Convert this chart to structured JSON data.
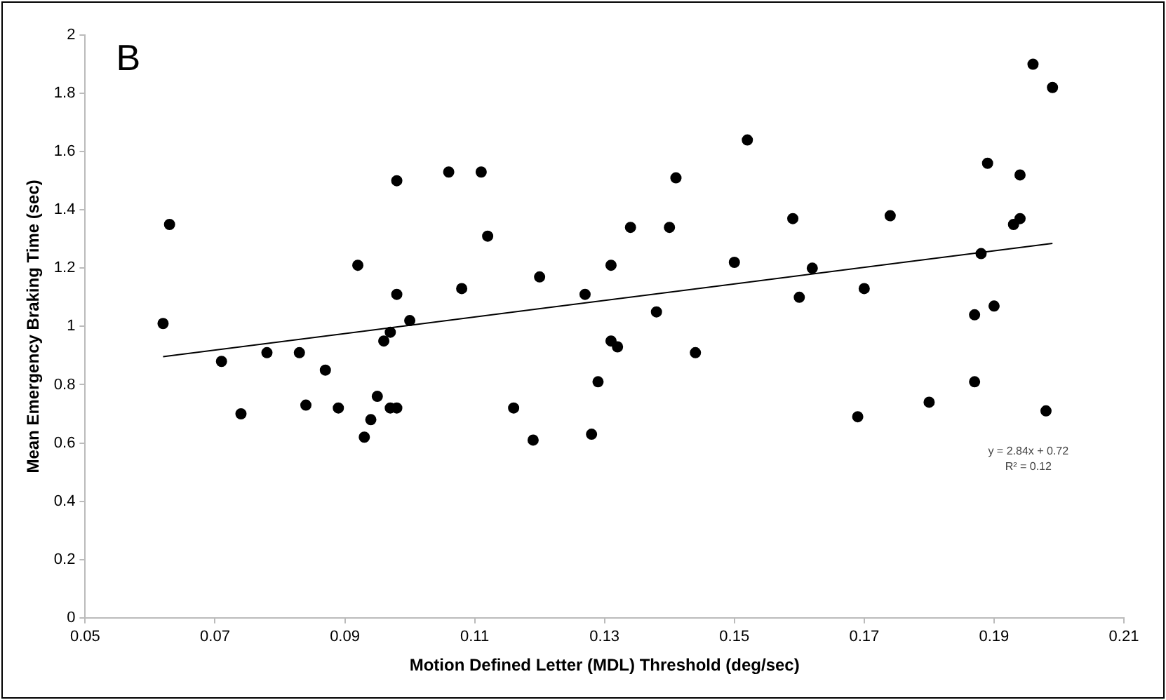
{
  "chart_data": {
    "type": "scatter",
    "xlabel": "Motion Defined Letter (MDL) Threshold (deg/sec)",
    "ylabel": "Mean Emergency Braking Time (sec)",
    "annotations": [
      "B",
      "y = 2.84x + 0.72",
      "R² = 0.12"
    ],
    "series": [
      {
        "color": "#000000",
        "marker": "circle",
        "x": [
          0.062,
          0.063,
          0.071,
          0.074,
          0.078,
          0.083,
          0.084,
          0.087,
          0.089,
          0.092,
          0.093,
          0.094,
          0.095,
          0.096,
          0.097,
          0.097,
          0.098,
          0.098,
          0.098,
          0.1,
          0.106,
          0.108,
          0.111,
          0.112,
          0.116,
          0.119,
          0.12,
          0.127,
          0.128,
          0.129,
          0.131,
          0.131,
          0.132,
          0.134,
          0.138,
          0.14,
          0.141,
          0.144,
          0.15,
          0.152,
          0.159,
          0.16,
          0.162,
          0.169,
          0.17,
          0.174,
          0.18,
          0.187,
          0.187,
          0.188,
          0.189,
          0.19,
          0.193,
          0.194,
          0.194,
          0.196,
          0.198,
          0.199
        ],
        "values": [
          1.01,
          1.35,
          0.88,
          0.7,
          0.91,
          0.91,
          0.73,
          0.85,
          0.72,
          1.21,
          0.62,
          0.68,
          0.76,
          0.95,
          0.98,
          0.72,
          0.72,
          1.5,
          1.11,
          1.02,
          1.53,
          1.13,
          1.53,
          1.31,
          0.72,
          0.61,
          1.17,
          1.11,
          0.63,
          0.81,
          1.21,
          0.95,
          0.93,
          1.34,
          1.05,
          1.34,
          1.51,
          0.91,
          1.22,
          1.64,
          1.37,
          1.1,
          1.2,
          0.69,
          1.13,
          1.38,
          0.74,
          0.81,
          1.04,
          1.25,
          1.56,
          1.07,
          1.35,
          1.37,
          1.52,
          1.9,
          0.71,
          1.82
        ]
      },
      {
        "type": "line",
        "color": "#000000",
        "marker": "none",
        "x": [
          0.062,
          0.199
        ],
        "values": [
          0.896,
          1.285
        ]
      }
    ],
    "xlim": [
      0.05,
      0.21
    ],
    "xticks": [
      0.05,
      0.07,
      0.09,
      0.11,
      0.13,
      0.15,
      0.17,
      0.19,
      0.21
    ],
    "ylim": [
      0,
      2
    ],
    "yticks": [
      0,
      0.2,
      0.4,
      0.6,
      0.8,
      1,
      1.2,
      1.4,
      1.6,
      1.8,
      2
    ],
    "grid": false,
    "legend": false
  }
}
